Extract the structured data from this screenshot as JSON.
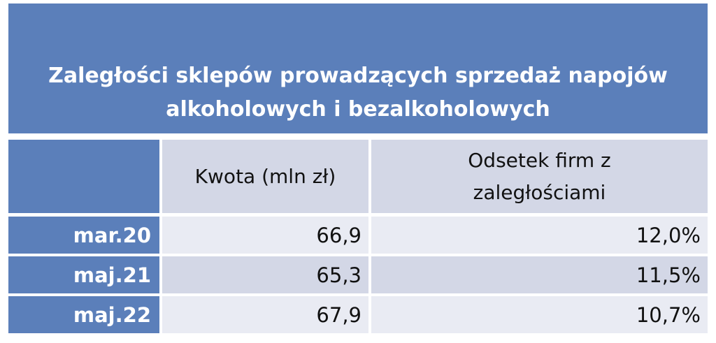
{
  "title": "Zaległości sklepów prowadzących sprzedaż napojów alkoholowych i bezalkoholowych",
  "table": {
    "header": [
      "Kwota (mln zł)",
      "Odsetek firm z zaległościami"
    ],
    "rows": [
      [
        "mar.20",
        "66,9",
        "12,0%"
      ],
      [
        "maj.21",
        "65,3",
        "11,5%"
      ],
      [
        "maj.22",
        "67,9",
        "10,7%"
      ]
    ]
  }
}
